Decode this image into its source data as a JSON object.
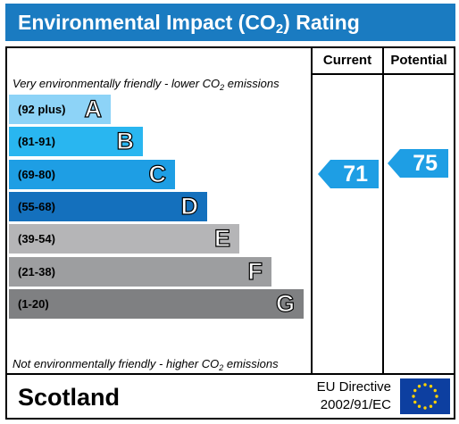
{
  "title": {
    "prefix": "Environmental Impact (CO",
    "sub": "2",
    "suffix": ") Rating"
  },
  "columns": {
    "current": "Current",
    "potential": "Potential"
  },
  "notes": {
    "top": {
      "prefix": "Very environmentally friendly - lower CO",
      "sub": "2",
      "suffix": " emissions"
    },
    "bottom": {
      "prefix": "Not environmentally friendly - higher CO",
      "sub": "2",
      "suffix": " emissions"
    }
  },
  "chart_data": {
    "type": "bar",
    "bands": [
      {
        "range": "(92 plus)",
        "letter": "A",
        "color": "#8dd3f7"
      },
      {
        "range": "(81-91)",
        "letter": "B",
        "color": "#29b6f0"
      },
      {
        "range": "(69-80)",
        "letter": "C",
        "color": "#1e9ee4"
      },
      {
        "range": "(55-68)",
        "letter": "D",
        "color": "#1470bd"
      },
      {
        "range": "(39-54)",
        "letter": "E",
        "color": "#b5b5b7"
      },
      {
        "range": "(21-38)",
        "letter": "F",
        "color": "#9d9ea0"
      },
      {
        "range": "(1-20)",
        "letter": "G",
        "color": "#7f8082"
      }
    ],
    "current": {
      "value": 71,
      "band": "C"
    },
    "potential": {
      "value": 75,
      "band": "C"
    },
    "arrow_color": "#1e9ee4"
  },
  "footer": {
    "region": "Scotland",
    "directive_line1": "EU Directive",
    "directive_line2": "2002/91/EC",
    "flag_colors": {
      "field": "#0d3fa0",
      "stars": "#ffd200"
    }
  }
}
